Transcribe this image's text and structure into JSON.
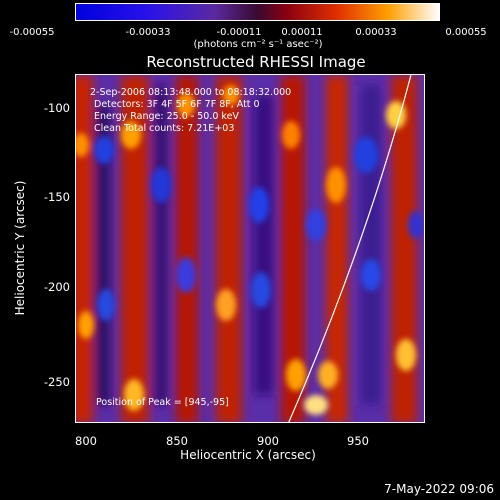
{
  "colorbar": {
    "ticks": [
      "-0.00055",
      "-0.00033",
      "-0.00011",
      "0.00011",
      "0.00033",
      "0.00055"
    ],
    "units": "(photons cm⁻² s⁻¹ asec⁻²)"
  },
  "title": "Reconstructed RHESSI Image",
  "annotations": {
    "time": "2-Sep-2006 08:13:48.000 to 08:18:32.000",
    "detectors": "Detectors: 3F 4F 5F 6F 7F 8F, Att 0",
    "energy": "Energy Range: 25.0 - 50.0 keV",
    "clean": "Clean     Total counts: 7.21E+03",
    "peak": "Position of Peak = [945,-95]"
  },
  "axes": {
    "xlabel": "Heliocentric X (arcsec)",
    "ylabel": "Heliocentric Y (arcsec)",
    "xticks": [
      "800",
      "850",
      "900",
      "950"
    ],
    "yticks": [
      "-100",
      "-150",
      "-200",
      "-250"
    ]
  },
  "footer_date": "7-May-2022 09:06"
}
